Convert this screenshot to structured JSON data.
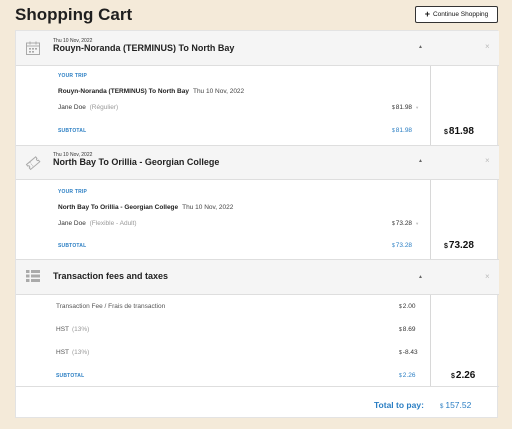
{
  "page": {
    "title": "Shopping Cart"
  },
  "toolbar": {
    "continue_label": "Continue Shopping",
    "continue_icon": "plus-icon"
  },
  "trips": [
    {
      "date": "Thu 10 Nov, 2022",
      "title": "Rouyn-Noranda (TERMINUS) To North Bay",
      "icon": "calendar-icon",
      "your_trip_label": "YOUR TRIP",
      "route": "Rouyn-Noranda (TERMINUS) To North Bay",
      "trip_date": "Thu 10 Nov, 2022",
      "passenger": "Jane Doe",
      "fare": "(Régulier)",
      "currency": "$",
      "price": "81.98",
      "subtotal_label": "SUBTOTAL",
      "subtotal": "81.98",
      "total": "81.98"
    },
    {
      "date": "Thu 10 Nov, 2022",
      "title": "North Bay To Orillia - Georgian College",
      "icon": "ticket-icon",
      "your_trip_label": "YOUR TRIP",
      "route": "North Bay To Orillia - Georgian College",
      "trip_date": "Thu 10 Nov, 2022",
      "passenger": "Jane Doe",
      "fare": "(Flexible - Adult)",
      "currency": "$",
      "price": "73.28",
      "subtotal_label": "SUBTOTAL",
      "subtotal": "73.28",
      "total": "73.28"
    }
  ],
  "fees": {
    "title": "Transaction fees and taxes",
    "icon": "list-icon",
    "currency": "$",
    "items": [
      {
        "label": "Transaction Fee / Frais de transaction",
        "note": "",
        "amount": "2.00"
      },
      {
        "label": "HST",
        "note": "(13%)",
        "amount": "8.69"
      },
      {
        "label": "HST",
        "note": "(13%)",
        "amount": "-8.43"
      }
    ],
    "subtotal_label": "SUBTOTAL",
    "subtotal": "2.26",
    "total": "2.26"
  },
  "footer": {
    "label": "Total to pay:",
    "currency": "$",
    "amount": "157.52"
  },
  "colors": {
    "accent": "#2a7ec3",
    "background": "#f4ead9"
  }
}
